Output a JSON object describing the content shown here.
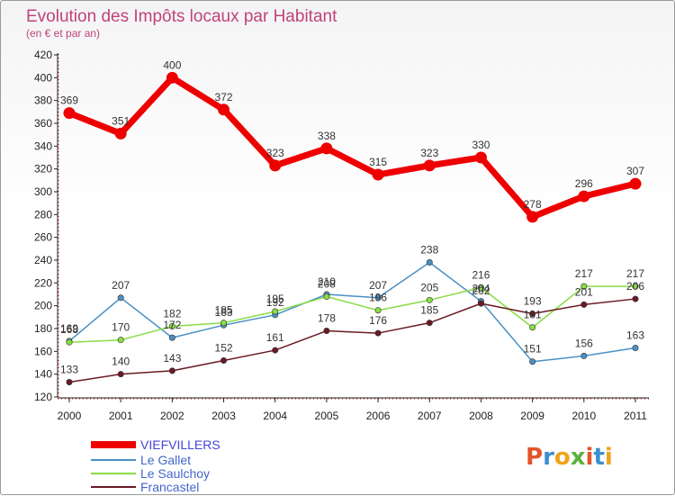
{
  "chart_data": {
    "type": "line",
    "title": "Evolution des Impôts locaux par Habitant",
    "subtitle": "(en € et par an)",
    "categories": [
      "2000",
      "2001",
      "2002",
      "2003",
      "2004",
      "2005",
      "2006",
      "2007",
      "2008",
      "2009",
      "2010",
      "2011"
    ],
    "ylim": [
      120,
      420
    ],
    "yticks": [
      120,
      140,
      160,
      180,
      200,
      220,
      240,
      260,
      280,
      300,
      320,
      340,
      360,
      380,
      400,
      420
    ],
    "grid": false,
    "series": [
      {
        "name": "VIEFVILLERS",
        "color": "#ee0000",
        "values": [
          369,
          351,
          400,
          372,
          323,
          338,
          315,
          323,
          330,
          278,
          296,
          307
        ]
      },
      {
        "name": "Le Gallet",
        "color": "#4a90c4",
        "values": [
          169,
          207,
          172,
          183,
          192,
          210,
          207,
          238,
          204,
          151,
          156,
          163
        ]
      },
      {
        "name": "Le Saulchoy",
        "color": "#88dd44",
        "values": [
          168,
          170,
          182,
          185,
          195,
          208,
          196,
          205,
          216,
          181,
          217,
          217
        ]
      },
      {
        "name": "Francastel",
        "color": "#6a1a22",
        "values": [
          133,
          140,
          143,
          152,
          161,
          178,
          176,
          185,
          202,
          193,
          201,
          206
        ]
      }
    ]
  },
  "logo": {
    "text": "Proxiti"
  }
}
